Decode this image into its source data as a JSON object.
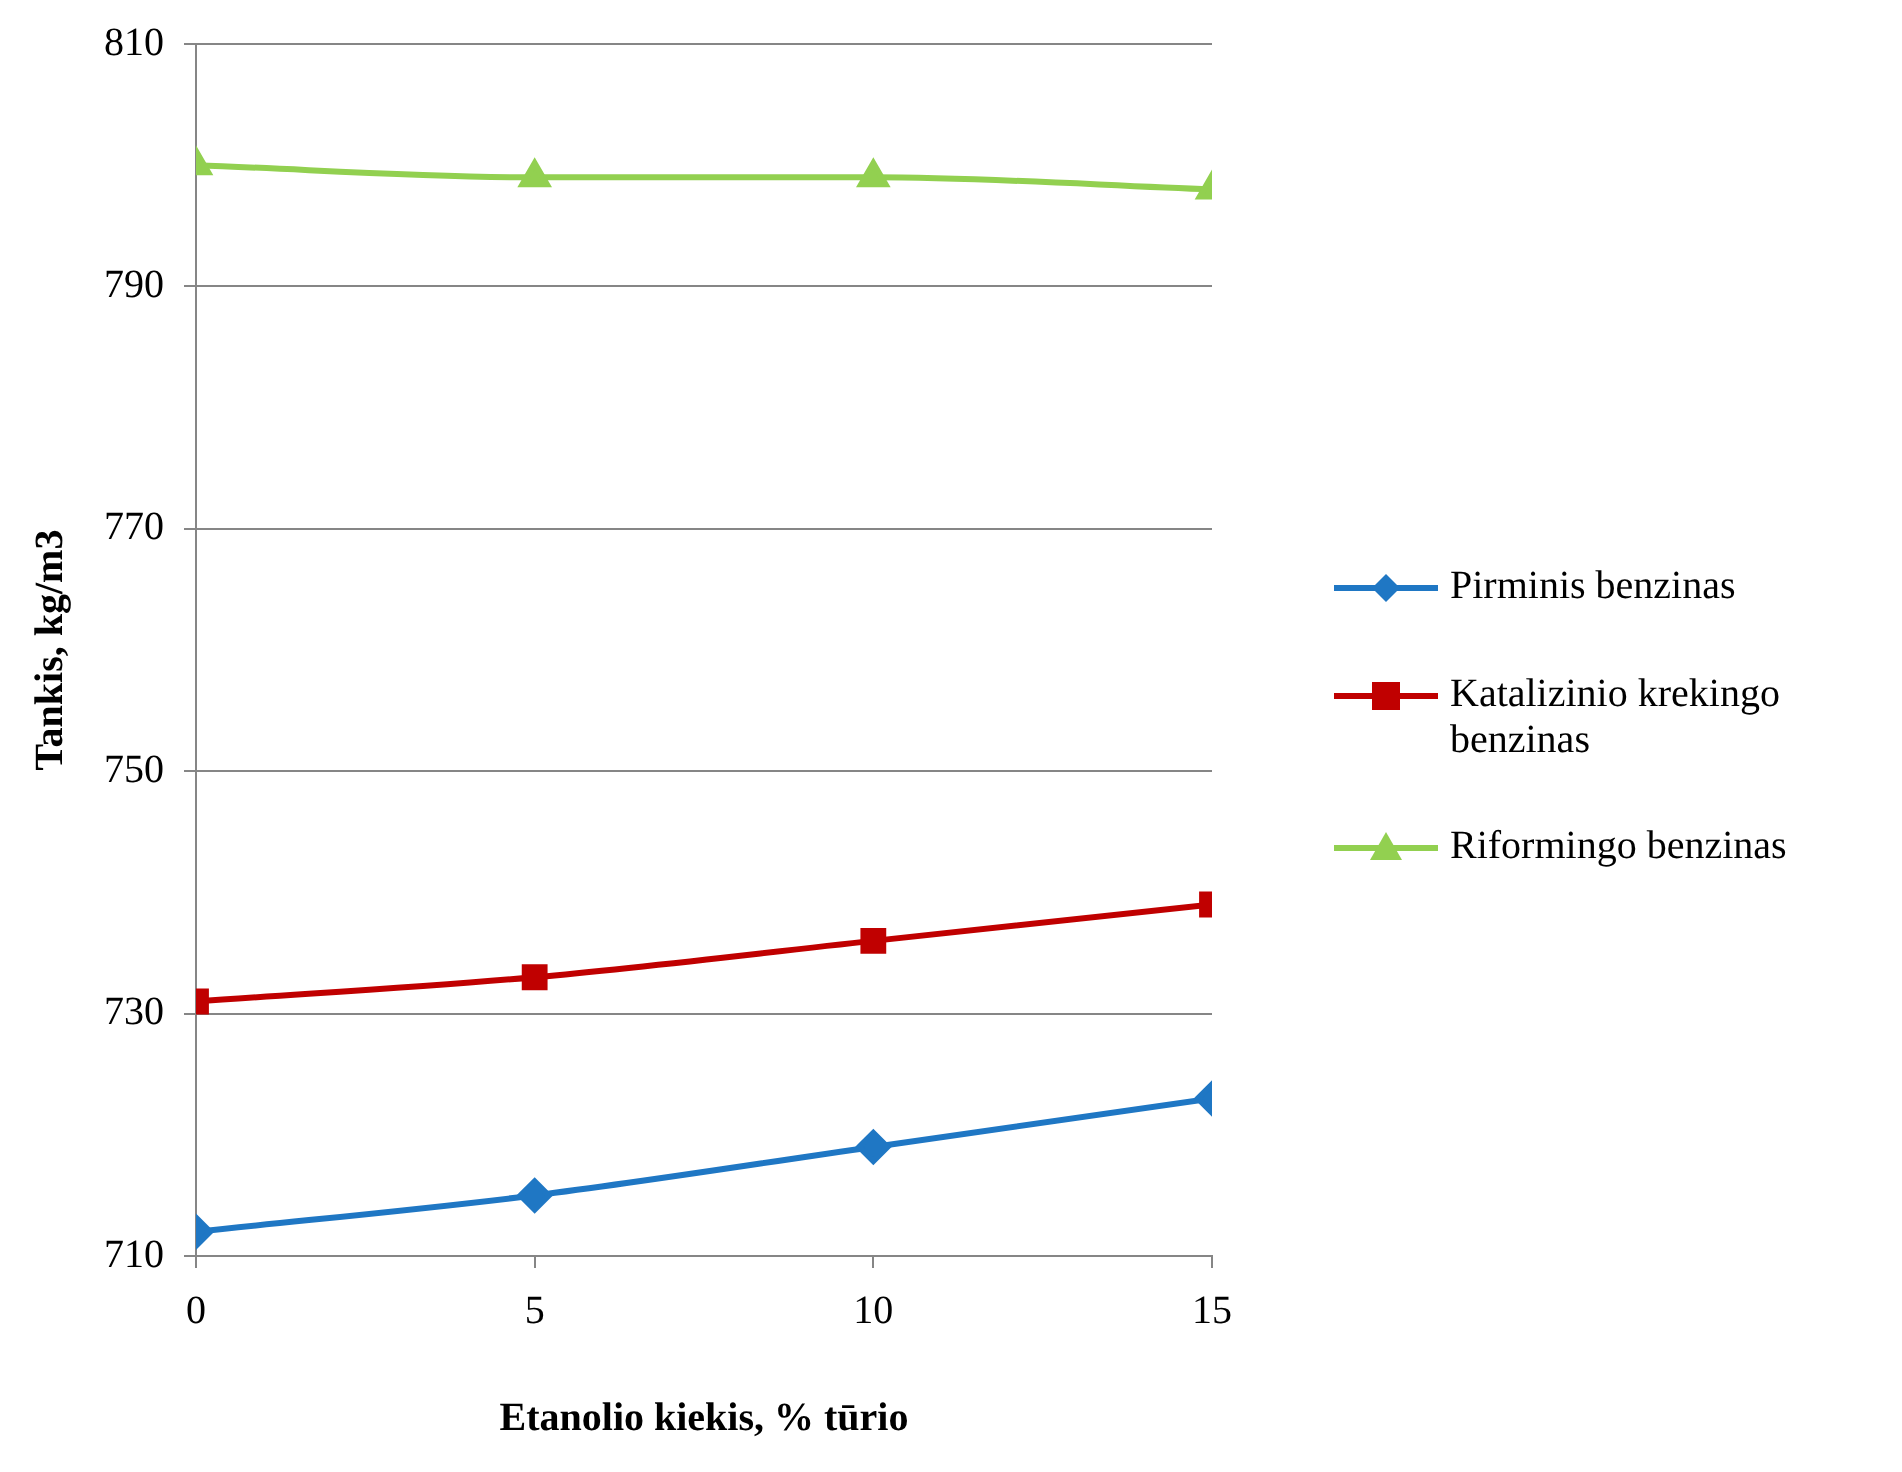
{
  "chart_data": {
    "type": "line",
    "xlabel": "Etanolio kiekis, % tūrio",
    "ylabel": "Tankis, kg/m3",
    "x": [
      0,
      5,
      10,
      15
    ],
    "xlim": [
      0,
      15
    ],
    "xticks": [
      0,
      5,
      10,
      15
    ],
    "ylim": [
      710,
      810
    ],
    "yticks": [
      710,
      730,
      750,
      770,
      790,
      810
    ],
    "grid": "y",
    "legend": "right",
    "series": [
      {
        "name": "Pirminis benzinas",
        "color": "#1f77c4",
        "marker": "diamond",
        "values": [
          712,
          715,
          719,
          723
        ]
      },
      {
        "name": "Katalizinio krekingo benzinas",
        "color": "#c00000",
        "marker": "square",
        "values": [
          731,
          733,
          736,
          739
        ]
      },
      {
        "name": "Riformingo benzinas",
        "color": "#92d050",
        "marker": "triangle",
        "values": [
          800,
          799,
          799,
          798
        ]
      }
    ]
  }
}
